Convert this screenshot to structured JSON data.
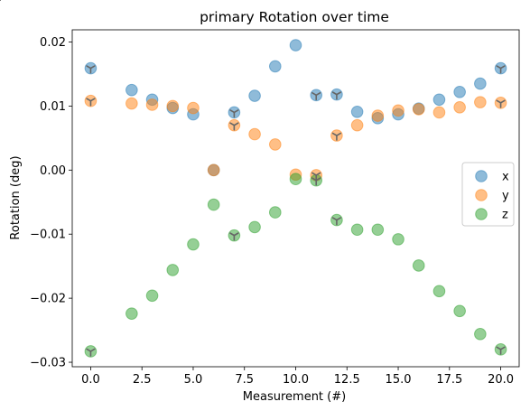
{
  "chart_data": {
    "type": "scatter",
    "title": "primary Rotation over time",
    "xlabel": "Measurement (#)",
    "ylabel": "Rotation (deg)",
    "xlim": [
      -0.9,
      20.9
    ],
    "ylim": [
      -0.0307,
      0.0219
    ],
    "xticks": [
      0.0,
      2.5,
      5.0,
      7.5,
      10.0,
      12.5,
      15.0,
      17.5,
      20.0
    ],
    "xtick_labels": [
      "0.0",
      "2.5",
      "5.0",
      "7.5",
      "10.0",
      "12.5",
      "15.0",
      "17.5",
      "20.0"
    ],
    "yticks": [
      -0.03,
      -0.02,
      -0.01,
      0.0,
      0.01,
      0.02
    ],
    "ytick_labels": [
      "−0.03",
      "−0.02",
      "−0.01",
      "0.00",
      "0.01",
      "0.02"
    ],
    "grid": false,
    "legend_position": "center-right",
    "marker_overlay_indices": [
      0,
      6,
      10,
      11,
      19,
      20
    ],
    "series": [
      {
        "name": "x",
        "color": "#1f77b4",
        "x": [
          0,
          2,
          3,
          4,
          5,
          6,
          7,
          8,
          9,
          10,
          11,
          12,
          13,
          14,
          15,
          16,
          17,
          18,
          19,
          20
        ],
        "y": [
          0.0159,
          0.0125,
          0.011,
          0.0097,
          0.0087,
          0.0,
          0.009,
          0.0116,
          0.0162,
          0.0195,
          0.0117,
          0.0118,
          0.0091,
          0.0081,
          0.0087,
          0.0096,
          0.011,
          0.0122,
          0.0135,
          0.0159
        ]
      },
      {
        "name": "y",
        "color": "#ff7f0e",
        "x": [
          0,
          2,
          3,
          4,
          5,
          6,
          7,
          8,
          9,
          10,
          11,
          12,
          13,
          14,
          15,
          16,
          17,
          18,
          19,
          20
        ],
        "y": [
          0.0108,
          0.0104,
          0.0102,
          0.01,
          0.0097,
          0.0,
          0.007,
          0.0056,
          0.004,
          -0.0007,
          -0.0008,
          0.0054,
          0.007,
          0.0085,
          0.0093,
          0.0095,
          0.009,
          0.0098,
          0.0106,
          0.0105
        ]
      },
      {
        "name": "z",
        "color": "#2ca02c",
        "x": [
          0,
          2,
          3,
          4,
          5,
          6,
          7,
          8,
          9,
          10,
          11,
          12,
          13,
          14,
          15,
          16,
          17,
          18,
          19,
          20
        ],
        "y": [
          -0.0283,
          -0.0224,
          -0.0196,
          -0.0156,
          -0.0116,
          -0.0054,
          -0.0102,
          -0.0089,
          -0.0066,
          -0.0014,
          -0.0016,
          -0.0078,
          -0.0093,
          -0.0093,
          -0.0108,
          -0.0149,
          -0.0189,
          -0.022,
          -0.0256,
          -0.028
        ]
      }
    ]
  }
}
